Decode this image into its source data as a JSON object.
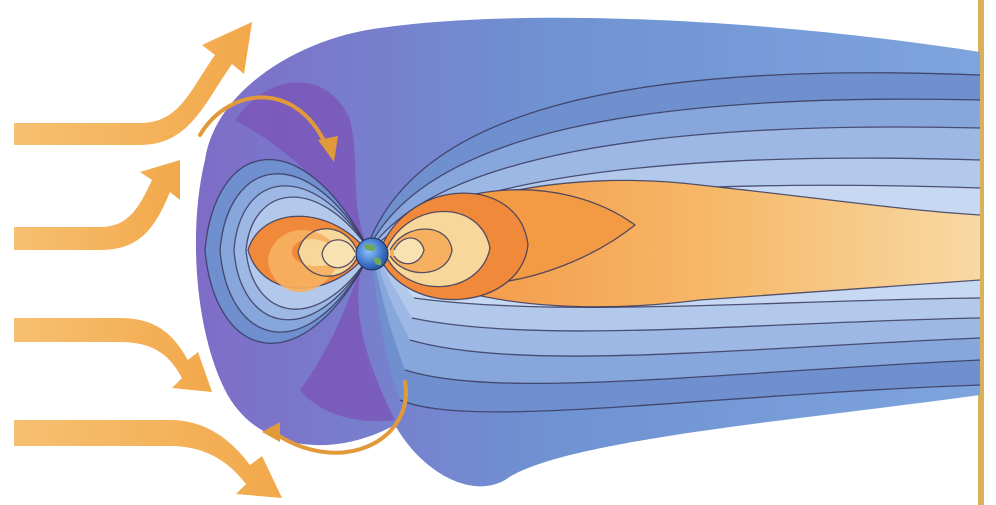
{
  "diagram": {
    "colors": {
      "background": "#ffffff",
      "magnetosphere_outer": "#8a67c4",
      "magnetosphere_mid": "#6f8fcf",
      "magnetosphere_inner": "#b9d0ef",
      "plasma_orange": "#f08a3a",
      "plasma_light": "#f6b060",
      "plasma_pale": "#f7d79a",
      "solar_wind_arrow": "#f4b45c",
      "earth_blue": "#3f74c9",
      "earth_green": "#6fa85a",
      "border_gold": "#d8b25a"
    },
    "elements": [
      {
        "name": "solar-wind-arrow-1",
        "icon": "arrow-curving-up"
      },
      {
        "name": "solar-wind-arrow-2",
        "icon": "arrow-curving-up"
      },
      {
        "name": "solar-wind-arrow-3",
        "icon": "arrow-curving-down"
      },
      {
        "name": "solar-wind-arrow-4",
        "icon": "arrow-curving-down"
      },
      {
        "name": "magnetopause",
        "icon": "magnetosphere-boundary"
      },
      {
        "name": "magnetotail",
        "icon": "magnetosphere-tail"
      },
      {
        "name": "dayside-radiation-belt",
        "icon": "nested-crescents"
      },
      {
        "name": "nightside-radiation-belt",
        "icon": "nested-crescents"
      },
      {
        "name": "plasma-sheet",
        "icon": "tapered-sheet"
      },
      {
        "name": "earth",
        "icon": "globe-icon"
      },
      {
        "name": "north-cusp-arrow",
        "icon": "curved-arrow"
      },
      {
        "name": "south-cusp-arrow",
        "icon": "curved-arrow"
      }
    ]
  }
}
